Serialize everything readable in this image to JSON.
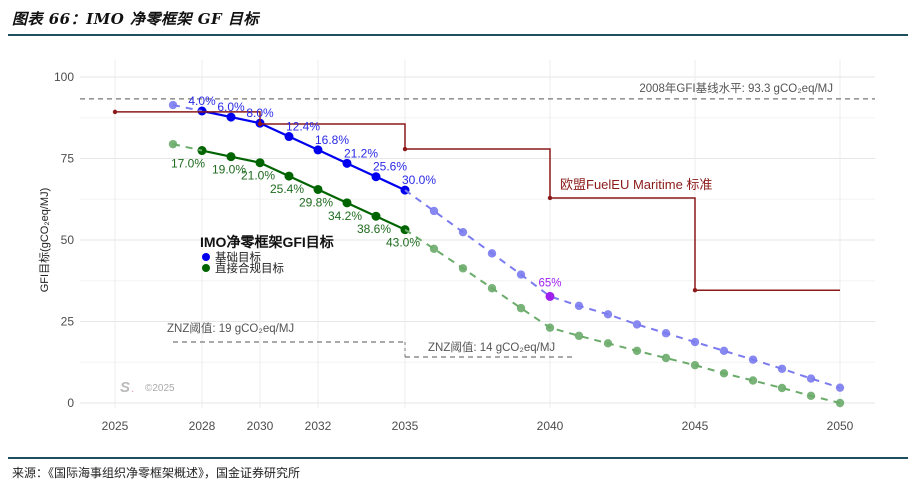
{
  "figure": {
    "title": "图表 66：IMO 净零框架 GF 目标",
    "source": "来源：《国际海事组织净零框架概述》，国金证券研究所"
  },
  "chart_data": {
    "type": "line",
    "title": "",
    "xlabel": "",
    "ylabel": "GFI目标(gCO₂eq/MJ)",
    "xlim": [
      2023.8,
      2051.2
    ],
    "ylim": [
      -3,
      104
    ],
    "x_ticks": [
      2025,
      2028,
      2030,
      2032,
      2035,
      2040,
      2045,
      2050
    ],
    "y_ticks": [
      0,
      25,
      50,
      75,
      100
    ],
    "grid": true,
    "legend": {
      "title": "IMO净零框架GFI目标",
      "position": "center-left",
      "items": [
        {
          "label": "基础目标",
          "color": "#0000ee"
        },
        {
          "label": "直接合规目标",
          "color": "#006400"
        }
      ]
    },
    "reference_lines": [
      {
        "name": "2008 GFI baseline",
        "label": "2008年GFI基线水平: 93.3 gCO₂eq/MJ",
        "y": 93.3,
        "x_range": [
          2023.8,
          2051.2
        ],
        "color": "#777777",
        "style": "dashed"
      },
      {
        "name": "ZNZ threshold 19",
        "label": "ZNZ阈值: 19 gCO₂eq/MJ",
        "y": 19,
        "x_range": [
          2027,
          2035
        ],
        "color": "#777777",
        "style": "dashed"
      },
      {
        "name": "ZNZ threshold 14",
        "label": "ZNZ阈值: 14 gCO₂eq/MJ",
        "y": 14,
        "x_range": [
          2035,
          2041
        ],
        "color": "#777777",
        "style": "dashed"
      }
    ],
    "series": [
      {
        "name": "基础目标",
        "color": "#0000ee",
        "style": "solid",
        "x": [
          2028,
          2029,
          2030,
          2031,
          2032,
          2033,
          2034,
          2035
        ],
        "values": [
          89.57,
          87.7,
          85.84,
          81.73,
          77.63,
          73.52,
          69.42,
          65.31
        ],
        "labels": [
          "4.0%",
          "6.0%",
          "8.0%",
          "12.4%",
          "16.8%",
          "21.2%",
          "25.6%",
          "30.0%"
        ]
      },
      {
        "name": "直接合规目标",
        "color": "#006400",
        "style": "solid",
        "x": [
          2028,
          2029,
          2030,
          2031,
          2032,
          2033,
          2034,
          2035
        ],
        "values": [
          77.44,
          75.57,
          73.71,
          69.6,
          65.5,
          61.39,
          57.29,
          53.18
        ],
        "labels": [
          "17.0%",
          "19.0%",
          "21.0%",
          "25.4%",
          "29.8%",
          "34.2%",
          "38.6%",
          "43.0%"
        ]
      },
      {
        "name": "基础目标(外推)",
        "color": "#7b7bf0",
        "style": "dashed",
        "x": [
          2027,
          2028,
          2035,
          2036,
          2037,
          2038,
          2039,
          2040,
          2041,
          2042,
          2043,
          2044,
          2045,
          2046,
          2047,
          2048,
          2049,
          2050
        ],
        "values": [
          91.4,
          89.57,
          65.31,
          58.9,
          52.4,
          45.9,
          39.4,
          32.7,
          29.8,
          27.2,
          24.1,
          21.4,
          18.7,
          16.0,
          13.3,
          10.5,
          7.5,
          4.7
        ],
        "marker_skip": [
          2028,
          2035
        ]
      },
      {
        "name": "直接合规目标(外推)",
        "color": "#6aab6a",
        "style": "dashed",
        "x": [
          2027,
          2028,
          2035,
          2036,
          2037,
          2038,
          2039,
          2040,
          2041,
          2042,
          2043,
          2044,
          2045,
          2046,
          2047,
          2048,
          2049,
          2050
        ],
        "values": [
          79.4,
          77.44,
          53.18,
          47.3,
          41.3,
          35.2,
          29.1,
          23.1,
          20.6,
          18.3,
          16.0,
          13.8,
          11.6,
          9.1,
          6.9,
          4.6,
          2.2,
          0.0
        ],
        "marker_skip": [
          2028,
          2035
        ]
      },
      {
        "name": "欧盟FuelEU Maritime 标准",
        "color": "#8b1a1a",
        "style": "step",
        "x": [
          2025,
          2030,
          2035,
          2040,
          2045,
          2050
        ],
        "values": [
          89.3,
          85.6,
          77.9,
          62.9,
          34.6,
          34.6
        ]
      }
    ],
    "highlight_point": {
      "x": 2040,
      "y": 32.7,
      "label": "65%",
      "color": "#a020f0"
    },
    "annotations": [
      {
        "text": "欧盟FuelEU Maritime 标准",
        "x": 2040,
        "y": 67,
        "color": "#8b1a1a"
      }
    ],
    "watermark": "©2025"
  }
}
